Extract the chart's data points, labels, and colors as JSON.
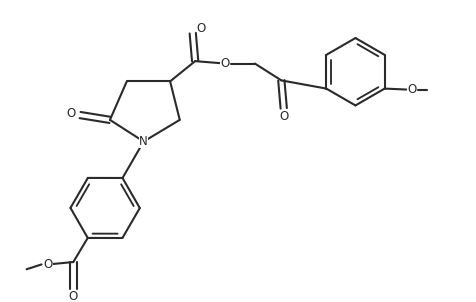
{
  "background_color": "#ffffff",
  "line_color": "#2a2a2a",
  "line_width": 1.5,
  "text_color": "#2a2a2a",
  "font_size": 8.5,
  "figsize": [
    4.76,
    3.02
  ],
  "dpi": 100,
  "xlim": [
    0,
    9.52
  ],
  "ylim": [
    0,
    6.04
  ]
}
